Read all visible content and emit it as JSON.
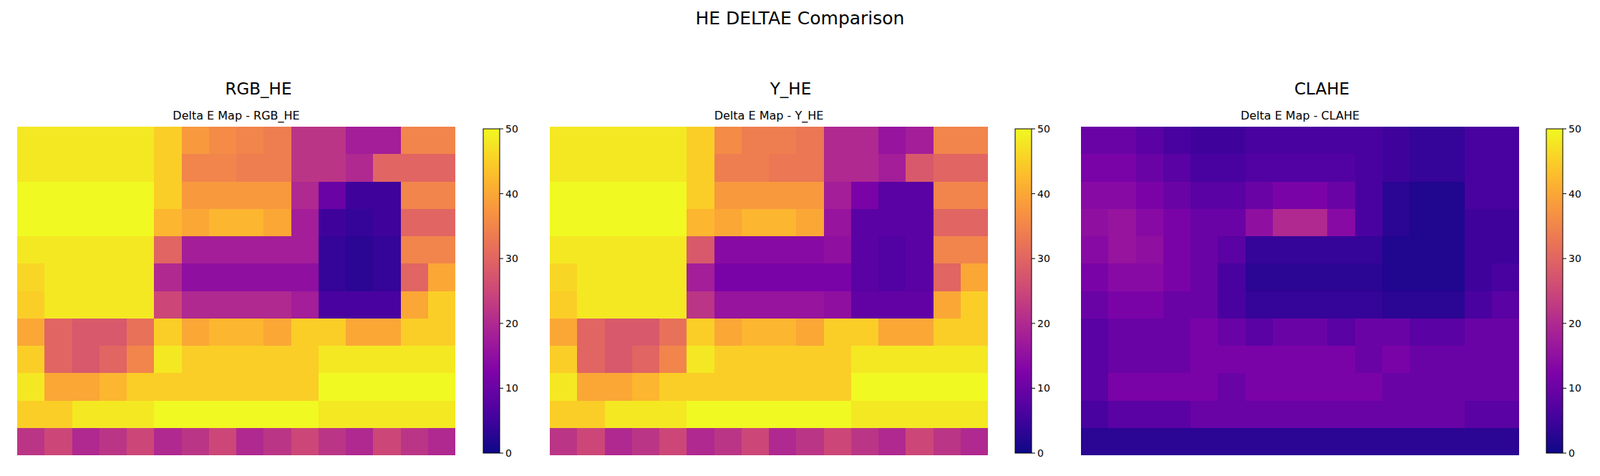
{
  "title": "HE DELTAE Comparison",
  "chart_data": [
    {
      "type": "heatmap",
      "title": "RGB_HE",
      "subtitle": "Delta E Map - RGB_HE",
      "color": "plasma",
      "tick_labels": false,
      "colorbar_range": [
        0,
        50
      ],
      "colorbar_ticks": [
        0,
        10,
        20,
        30,
        40,
        50
      ],
      "cells": [
        [
          48,
          48,
          48,
          48,
          48,
          45,
          38,
          36,
          35,
          34,
          22,
          22,
          18,
          18,
          35,
          35
        ],
        [
          48,
          48,
          48,
          48,
          48,
          45,
          35,
          35,
          34,
          34,
          22,
          22,
          20,
          30,
          30,
          30
        ],
        [
          50,
          50,
          50,
          50,
          50,
          45,
          38,
          38,
          38,
          38,
          20,
          10,
          5,
          5,
          35,
          35
        ],
        [
          50,
          50,
          50,
          50,
          50,
          42,
          40,
          42,
          42,
          40,
          18,
          5,
          4,
          5,
          30,
          30
        ],
        [
          48,
          48,
          48,
          48,
          48,
          30,
          18,
          18,
          18,
          18,
          18,
          4,
          3,
          4,
          35,
          35
        ],
        [
          46,
          48,
          48,
          48,
          48,
          20,
          15,
          15,
          15,
          15,
          15,
          4,
          3,
          4,
          30,
          40
        ],
        [
          45,
          48,
          48,
          48,
          48,
          25,
          20,
          20,
          20,
          20,
          18,
          6,
          6,
          6,
          40,
          45
        ],
        [
          40,
          30,
          28,
          28,
          32,
          45,
          40,
          42,
          42,
          40,
          45,
          45,
          40,
          40,
          45,
          45
        ],
        [
          45,
          30,
          28,
          30,
          35,
          48,
          45,
          45,
          45,
          45,
          45,
          48,
          48,
          48,
          48,
          48
        ],
        [
          48,
          40,
          40,
          42,
          45,
          45,
          45,
          45,
          45,
          45,
          45,
          50,
          50,
          50,
          50,
          50
        ],
        [
          45,
          45,
          48,
          48,
          48,
          50,
          50,
          50,
          50,
          50,
          50,
          48,
          48,
          48,
          48,
          48
        ],
        [
          22,
          25,
          20,
          22,
          25,
          20,
          22,
          25,
          20,
          22,
          25,
          22,
          20,
          25,
          22,
          20
        ]
      ]
    },
    {
      "type": "heatmap",
      "title": "Y_HE",
      "subtitle": "Delta E Map - Y_HE",
      "color": "plasma",
      "tick_labels": false,
      "colorbar_range": [
        0,
        50
      ],
      "colorbar_ticks": [
        0,
        10,
        20,
        30,
        40,
        50
      ],
      "cells": [
        [
          48,
          48,
          48,
          48,
          48,
          45,
          36,
          34,
          34,
          33,
          20,
          20,
          16,
          18,
          35,
          35
        ],
        [
          48,
          48,
          48,
          48,
          48,
          45,
          34,
          34,
          33,
          33,
          20,
          20,
          18,
          28,
          30,
          30
        ],
        [
          50,
          50,
          50,
          50,
          50,
          45,
          38,
          38,
          38,
          38,
          18,
          12,
          8,
          8,
          35,
          35
        ],
        [
          50,
          50,
          50,
          50,
          50,
          42,
          40,
          42,
          42,
          40,
          16,
          8,
          8,
          8,
          30,
          30
        ],
        [
          48,
          48,
          48,
          48,
          48,
          28,
          14,
          14,
          14,
          14,
          15,
          8,
          7,
          8,
          35,
          35
        ],
        [
          46,
          48,
          48,
          48,
          48,
          18,
          12,
          12,
          12,
          12,
          12,
          8,
          7,
          8,
          30,
          40
        ],
        [
          45,
          48,
          48,
          48,
          48,
          22,
          16,
          16,
          16,
          16,
          15,
          9,
          9,
          9,
          40,
          45
        ],
        [
          40,
          30,
          28,
          28,
          32,
          45,
          40,
          42,
          42,
          40,
          45,
          45,
          40,
          40,
          45,
          45
        ],
        [
          45,
          30,
          28,
          30,
          35,
          48,
          45,
          45,
          45,
          45,
          45,
          48,
          48,
          48,
          48,
          48
        ],
        [
          48,
          40,
          40,
          42,
          45,
          45,
          45,
          45,
          45,
          45,
          45,
          50,
          50,
          50,
          50,
          50
        ],
        [
          45,
          45,
          48,
          48,
          48,
          50,
          50,
          50,
          50,
          50,
          50,
          48,
          48,
          48,
          48,
          48
        ],
        [
          22,
          25,
          20,
          22,
          25,
          20,
          22,
          25,
          20,
          22,
          25,
          22,
          20,
          25,
          22,
          20
        ]
      ]
    },
    {
      "type": "heatmap",
      "title": "CLAHE",
      "subtitle": "Delta E Map - CLAHE",
      "color": "plasma",
      "tick_labels": false,
      "colorbar_range": [
        0,
        50
      ],
      "colorbar_ticks": [
        0,
        10,
        20,
        30,
        40,
        50
      ],
      "cells": [
        [
          10,
          10,
          8,
          6,
          5,
          5,
          6,
          6,
          6,
          6,
          6,
          5,
          4,
          4,
          6,
          6
        ],
        [
          12,
          12,
          10,
          8,
          6,
          6,
          7,
          7,
          7,
          7,
          6,
          5,
          4,
          4,
          6,
          6
        ],
        [
          14,
          14,
          12,
          10,
          8,
          8,
          10,
          12,
          12,
          10,
          6,
          3,
          2,
          2,
          6,
          6
        ],
        [
          15,
          16,
          14,
          12,
          10,
          10,
          15,
          20,
          20,
          14,
          6,
          3,
          2,
          2,
          5,
          5
        ],
        [
          14,
          16,
          15,
          12,
          10,
          8,
          4,
          4,
          4,
          4,
          4,
          2,
          2,
          2,
          5,
          5
        ],
        [
          12,
          14,
          14,
          12,
          10,
          6,
          3,
          3,
          3,
          3,
          3,
          2,
          2,
          2,
          5,
          6
        ],
        [
          10,
          12,
          12,
          10,
          10,
          6,
          4,
          4,
          4,
          4,
          4,
          3,
          3,
          3,
          6,
          8
        ],
        [
          8,
          10,
          10,
          10,
          12,
          10,
          8,
          10,
          10,
          8,
          10,
          10,
          8,
          8,
          10,
          10
        ],
        [
          8,
          10,
          10,
          10,
          12,
          12,
          12,
          12,
          12,
          12,
          10,
          12,
          10,
          10,
          10,
          10
        ],
        [
          8,
          12,
          12,
          12,
          12,
          10,
          12,
          12,
          12,
          12,
          12,
          10,
          10,
          10,
          10,
          10
        ],
        [
          6,
          8,
          8,
          8,
          10,
          10,
          10,
          10,
          10,
          10,
          10,
          10,
          10,
          10,
          8,
          8
        ],
        [
          3,
          3,
          3,
          3,
          3,
          3,
          3,
          3,
          3,
          3,
          3,
          3,
          3,
          3,
          3,
          3
        ]
      ]
    }
  ]
}
